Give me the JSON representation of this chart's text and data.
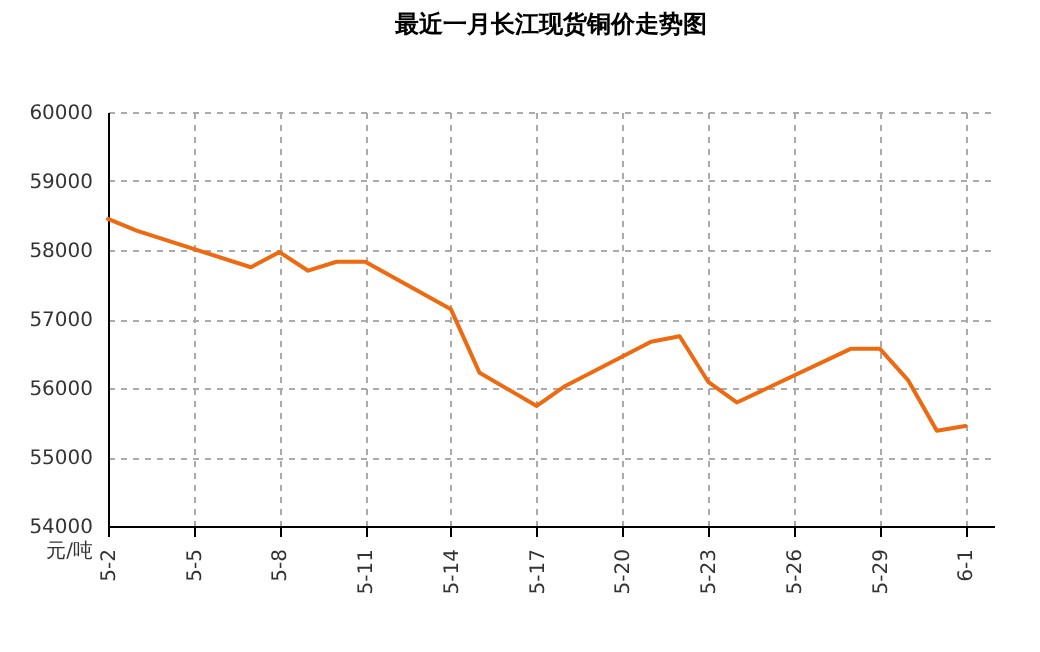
{
  "chart_data": {
    "type": "line",
    "title": "最近一月长江现货铜价走势图",
    "ylabel": "元/吨",
    "x": [
      "--05-02",
      "--05-03",
      "--05-07",
      "--05-08",
      "--05-09",
      "--05-10",
      "--05-11",
      "--05-14",
      "--05-15",
      "--05-17",
      "--05-18",
      "--05-21",
      "--05-22",
      "--05-23",
      "--05-24",
      "--05-28",
      "--05-29",
      "--05-30",
      "--05-31",
      "--06-01"
    ],
    "series": [
      {
        "color": "#ee6a10",
        "values": [
          58450,
          58280,
          57750,
          57970,
          57700,
          57830,
          57830,
          57140,
          56220,
          55740,
          56030,
          56670,
          56750,
          56090,
          55790,
          56570,
          56570,
          56110,
          55380,
          55450
        ]
      }
    ],
    "xlim": [
      "--05-02",
      "--06-02"
    ],
    "xticks": [
      {
        "value": "--05-02",
        "label": "5-2"
      },
      {
        "value": "--05-05",
        "label": "5-5"
      },
      {
        "value": "--05-08",
        "label": "5-8"
      },
      {
        "value": "--05-11",
        "label": "5-11"
      },
      {
        "value": "--05-14",
        "label": "5-14"
      },
      {
        "value": "--05-17",
        "label": "5-17"
      },
      {
        "value": "--05-20",
        "label": "5-20"
      },
      {
        "value": "--05-23",
        "label": "5-23"
      },
      {
        "value": "--05-26",
        "label": "5-26"
      },
      {
        "value": "--05-29",
        "label": "5-29"
      },
      {
        "value": "--06-01",
        "label": "6-1"
      }
    ],
    "ylim": [
      54000,
      60000
    ],
    "yticks": [
      54000,
      55000,
      56000,
      57000,
      58000,
      59000,
      60000
    ],
    "grid": true,
    "marker": "none",
    "line_style": "solid"
  }
}
